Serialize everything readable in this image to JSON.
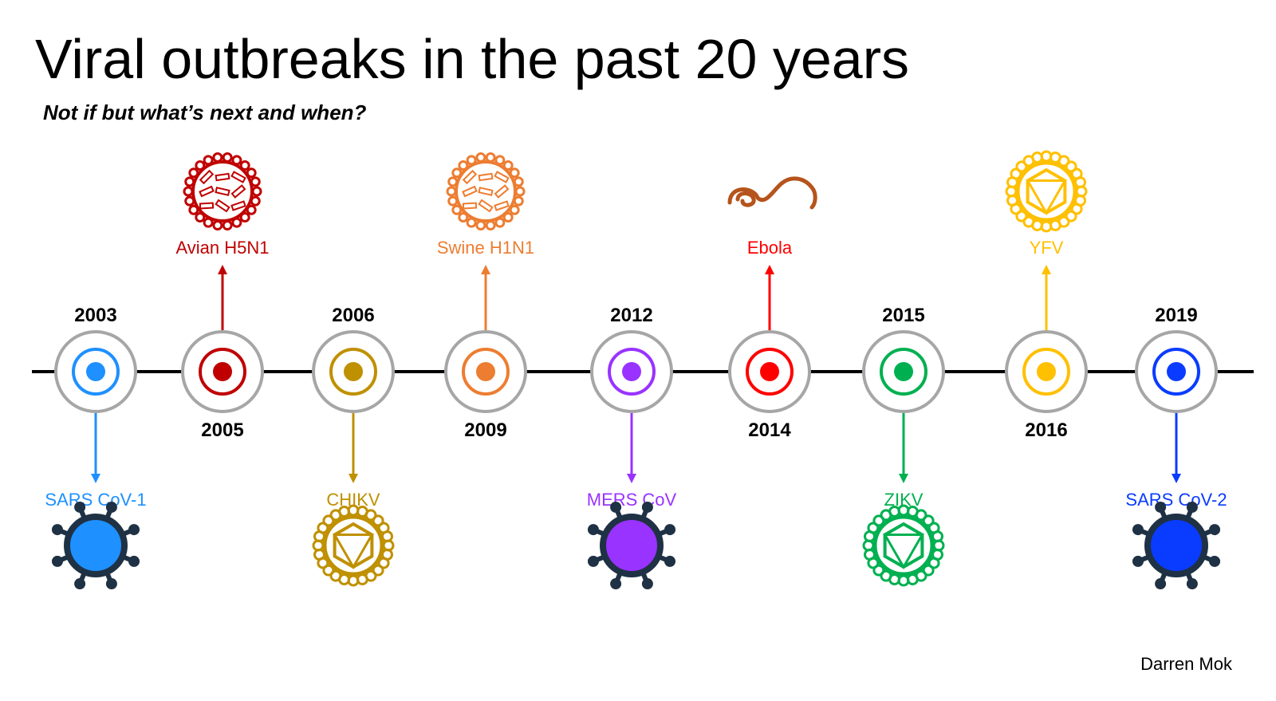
{
  "header": {
    "title": "Viral outbreaks in the past 20 years",
    "subtitle": "Not if but what’s next and when?"
  },
  "events": [
    {
      "year": "2003",
      "name": "SARS CoV-1",
      "color": "#1e90ff"
    },
    {
      "year": "2005",
      "name": "Avian H5N1",
      "color": "#c00000"
    },
    {
      "year": "2006",
      "name": "CHIKV",
      "color": "#bf9000"
    },
    {
      "year": "2009",
      "name": "Swine H1N1",
      "color": "#ed7d31"
    },
    {
      "year": "2012",
      "name": "MERS CoV",
      "color": "#9933ff"
    },
    {
      "year": "2014",
      "name": "Ebola",
      "color": "#ff0000"
    },
    {
      "year": "2015",
      "name": "ZIKV",
      "color": "#00b050"
    },
    {
      "year": "2016",
      "name": "YFV",
      "color": "#ffc000"
    },
    {
      "year": "2019",
      "name": "SARS CoV-2",
      "color": "#0a3cff"
    }
  ],
  "footer": {
    "author": "Darren Mok"
  }
}
